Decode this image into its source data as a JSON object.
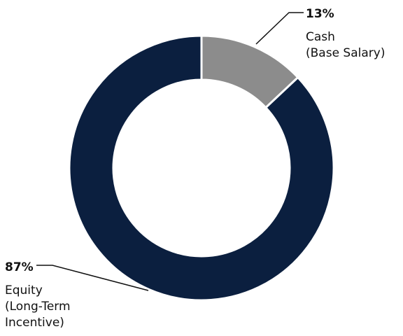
{
  "chart_data": {
    "type": "pie",
    "title": "",
    "categories": [
      "Cash (Base Salary)",
      "Equity (Long-Term Incentive)"
    ],
    "series": [
      {
        "values": [
          13,
          87
        ],
        "colors": [
          "#8c8c8c",
          "#0b1f3f"
        ]
      }
    ],
    "annotations": [
      {
        "value": "13%",
        "lines": [
          "Cash",
          "(Base Salary)"
        ]
      },
      {
        "value": "87%",
        "lines": [
          "Equity",
          "(Long-Term",
          "Incentive)"
        ]
      }
    ]
  }
}
